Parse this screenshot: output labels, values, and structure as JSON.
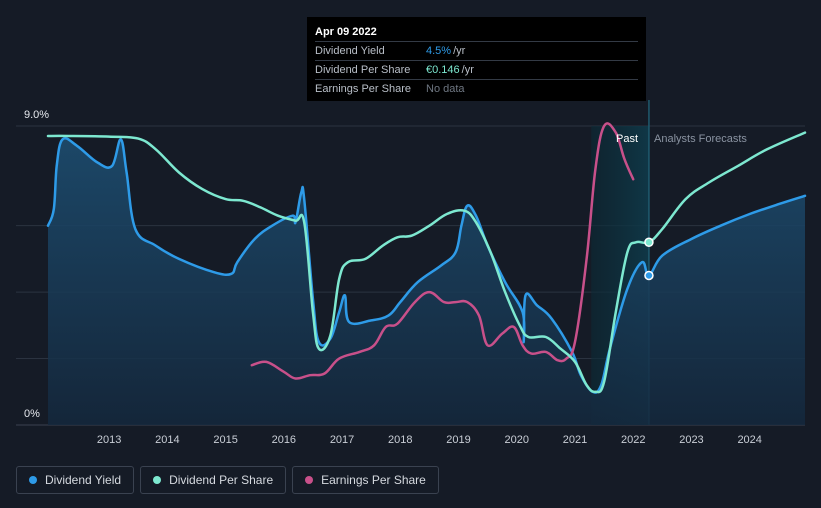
{
  "tooltip": {
    "date": "Apr 09 2022",
    "rows": [
      {
        "name": "Dividend Yield",
        "value": "4.5%",
        "unit": "/yr",
        "color": "#2e9be8"
      },
      {
        "name": "Dividend Per Share",
        "value": "€0.146",
        "unit": "/yr",
        "color": "#7de8d0"
      },
      {
        "name": "Earnings Per Share",
        "value": "No data",
        "unit": "",
        "color": "#6f7782"
      }
    ]
  },
  "zones": {
    "past_label": "Past",
    "forecast_label": "Analysts Forecasts"
  },
  "legend": [
    {
      "label": "Dividend Yield",
      "color": "#2e9be8"
    },
    {
      "label": "Dividend Per Share",
      "color": "#7de8d0"
    },
    {
      "label": "Earnings Per Share",
      "color": "#c8508a"
    }
  ],
  "chart_data": {
    "type": "line",
    "y_axis_labels": [
      "9.0%",
      "0%"
    ],
    "ylim": [
      0,
      9
    ],
    "x_ticks": [
      "2013",
      "2014",
      "2015",
      "2016",
      "2017",
      "2018",
      "2019",
      "2020",
      "2021",
      "2022",
      "2023",
      "2024"
    ],
    "xlim": [
      2011.95,
      2024.95
    ],
    "past_end": 2022.27,
    "shaded_band_start": 2021.28,
    "grid": true,
    "legend_position": "bottom-left",
    "series": [
      {
        "name": "Dividend Yield",
        "color": "#2e9be8",
        "filled": true,
        "points": [
          [
            2011.95,
            6.0
          ],
          [
            2012.05,
            6.5
          ],
          [
            2012.1,
            7.8
          ],
          [
            2012.2,
            8.6
          ],
          [
            2012.45,
            8.4
          ],
          [
            2012.8,
            7.9
          ],
          [
            2013.05,
            7.8
          ],
          [
            2013.2,
            8.6
          ],
          [
            2013.3,
            7.6
          ],
          [
            2013.45,
            5.9
          ],
          [
            2013.8,
            5.4
          ],
          [
            2014.2,
            5.0
          ],
          [
            2014.8,
            4.6
          ],
          [
            2015.1,
            4.55
          ],
          [
            2015.2,
            4.9
          ],
          [
            2015.5,
            5.6
          ],
          [
            2015.8,
            6.0
          ],
          [
            2016.15,
            6.3
          ],
          [
            2016.2,
            6.1
          ],
          [
            2016.3,
            7.0
          ],
          [
            2016.35,
            6.8
          ],
          [
            2016.5,
            3.8
          ],
          [
            2016.6,
            2.5
          ],
          [
            2016.8,
            2.6
          ],
          [
            2016.95,
            3.4
          ],
          [
            2017.05,
            3.9
          ],
          [
            2017.12,
            3.1
          ],
          [
            2017.5,
            3.15
          ],
          [
            2017.8,
            3.3
          ],
          [
            2018.0,
            3.7
          ],
          [
            2018.3,
            4.3
          ],
          [
            2018.7,
            4.8
          ],
          [
            2018.95,
            5.2
          ],
          [
            2019.05,
            6.0
          ],
          [
            2019.15,
            6.6
          ],
          [
            2019.3,
            6.3
          ],
          [
            2019.5,
            5.4
          ],
          [
            2019.8,
            4.3
          ],
          [
            2020.1,
            3.4
          ],
          [
            2020.12,
            2.5
          ],
          [
            2020.15,
            3.9
          ],
          [
            2020.35,
            3.6
          ],
          [
            2020.6,
            3.2
          ],
          [
            2020.95,
            2.2
          ],
          [
            2021.1,
            1.5
          ],
          [
            2021.3,
            1.0
          ],
          [
            2021.45,
            1.2
          ],
          [
            2021.6,
            2.3
          ],
          [
            2021.9,
            4.1
          ],
          [
            2022.15,
            4.9
          ],
          [
            2022.27,
            4.5
          ],
          [
            2022.5,
            5.1
          ],
          [
            2023.0,
            5.6
          ],
          [
            2023.5,
            6.0
          ],
          [
            2024.0,
            6.35
          ],
          [
            2024.5,
            6.65
          ],
          [
            2024.95,
            6.9
          ]
        ]
      },
      {
        "name": "Dividend Per Share",
        "color": "#7de8d0",
        "filled": false,
        "points": [
          [
            2011.95,
            8.7
          ],
          [
            2012.3,
            8.7
          ],
          [
            2013.0,
            8.68
          ],
          [
            2013.5,
            8.62
          ],
          [
            2013.8,
            8.3
          ],
          [
            2014.2,
            7.6
          ],
          [
            2014.6,
            7.1
          ],
          [
            2015.0,
            6.8
          ],
          [
            2015.3,
            6.75
          ],
          [
            2015.6,
            6.55
          ],
          [
            2015.9,
            6.3
          ],
          [
            2016.2,
            6.15
          ],
          [
            2016.35,
            6.1
          ],
          [
            2016.5,
            3.4
          ],
          [
            2016.6,
            2.3
          ],
          [
            2016.8,
            2.7
          ],
          [
            2016.95,
            4.4
          ],
          [
            2017.1,
            4.9
          ],
          [
            2017.4,
            5.0
          ],
          [
            2017.7,
            5.4
          ],
          [
            2017.95,
            5.65
          ],
          [
            2018.2,
            5.7
          ],
          [
            2018.5,
            6.0
          ],
          [
            2018.8,
            6.35
          ],
          [
            2019.1,
            6.45
          ],
          [
            2019.3,
            6.1
          ],
          [
            2019.55,
            5.2
          ],
          [
            2019.8,
            4.0
          ],
          [
            2020.05,
            3.0
          ],
          [
            2020.2,
            2.65
          ],
          [
            2020.5,
            2.65
          ],
          [
            2020.75,
            2.3
          ],
          [
            2021.0,
            1.9
          ],
          [
            2021.2,
            1.2
          ],
          [
            2021.35,
            1.0
          ],
          [
            2021.5,
            1.3
          ],
          [
            2021.7,
            3.4
          ],
          [
            2021.9,
            5.2
          ],
          [
            2022.05,
            5.5
          ],
          [
            2022.27,
            5.5
          ],
          [
            2022.5,
            5.9
          ],
          [
            2022.9,
            6.8
          ],
          [
            2023.3,
            7.3
          ],
          [
            2023.8,
            7.8
          ],
          [
            2024.3,
            8.3
          ],
          [
            2024.95,
            8.8
          ]
        ]
      },
      {
        "name": "Earnings Per Share",
        "color": "#c8508a",
        "filled": false,
        "points": [
          [
            2015.45,
            1.8
          ],
          [
            2015.7,
            1.9
          ],
          [
            2016.0,
            1.6
          ],
          [
            2016.2,
            1.4
          ],
          [
            2016.45,
            1.5
          ],
          [
            2016.7,
            1.55
          ],
          [
            2016.95,
            2.0
          ],
          [
            2017.3,
            2.2
          ],
          [
            2017.55,
            2.4
          ],
          [
            2017.75,
            2.95
          ],
          [
            2017.95,
            3.05
          ],
          [
            2018.25,
            3.7
          ],
          [
            2018.5,
            4.0
          ],
          [
            2018.75,
            3.7
          ],
          [
            2018.95,
            3.7
          ],
          [
            2019.15,
            3.7
          ],
          [
            2019.35,
            3.3
          ],
          [
            2019.5,
            2.4
          ],
          [
            2019.75,
            2.75
          ],
          [
            2019.95,
            2.95
          ],
          [
            2020.1,
            2.4
          ],
          [
            2020.25,
            2.15
          ],
          [
            2020.5,
            2.2
          ],
          [
            2020.7,
            1.95
          ],
          [
            2020.85,
            2.0
          ],
          [
            2021.0,
            2.5
          ],
          [
            2021.2,
            5.0
          ],
          [
            2021.35,
            7.7
          ],
          [
            2021.5,
            9.0
          ],
          [
            2021.7,
            8.8
          ],
          [
            2021.85,
            8.0
          ],
          [
            2022.0,
            7.4
          ]
        ]
      }
    ]
  }
}
